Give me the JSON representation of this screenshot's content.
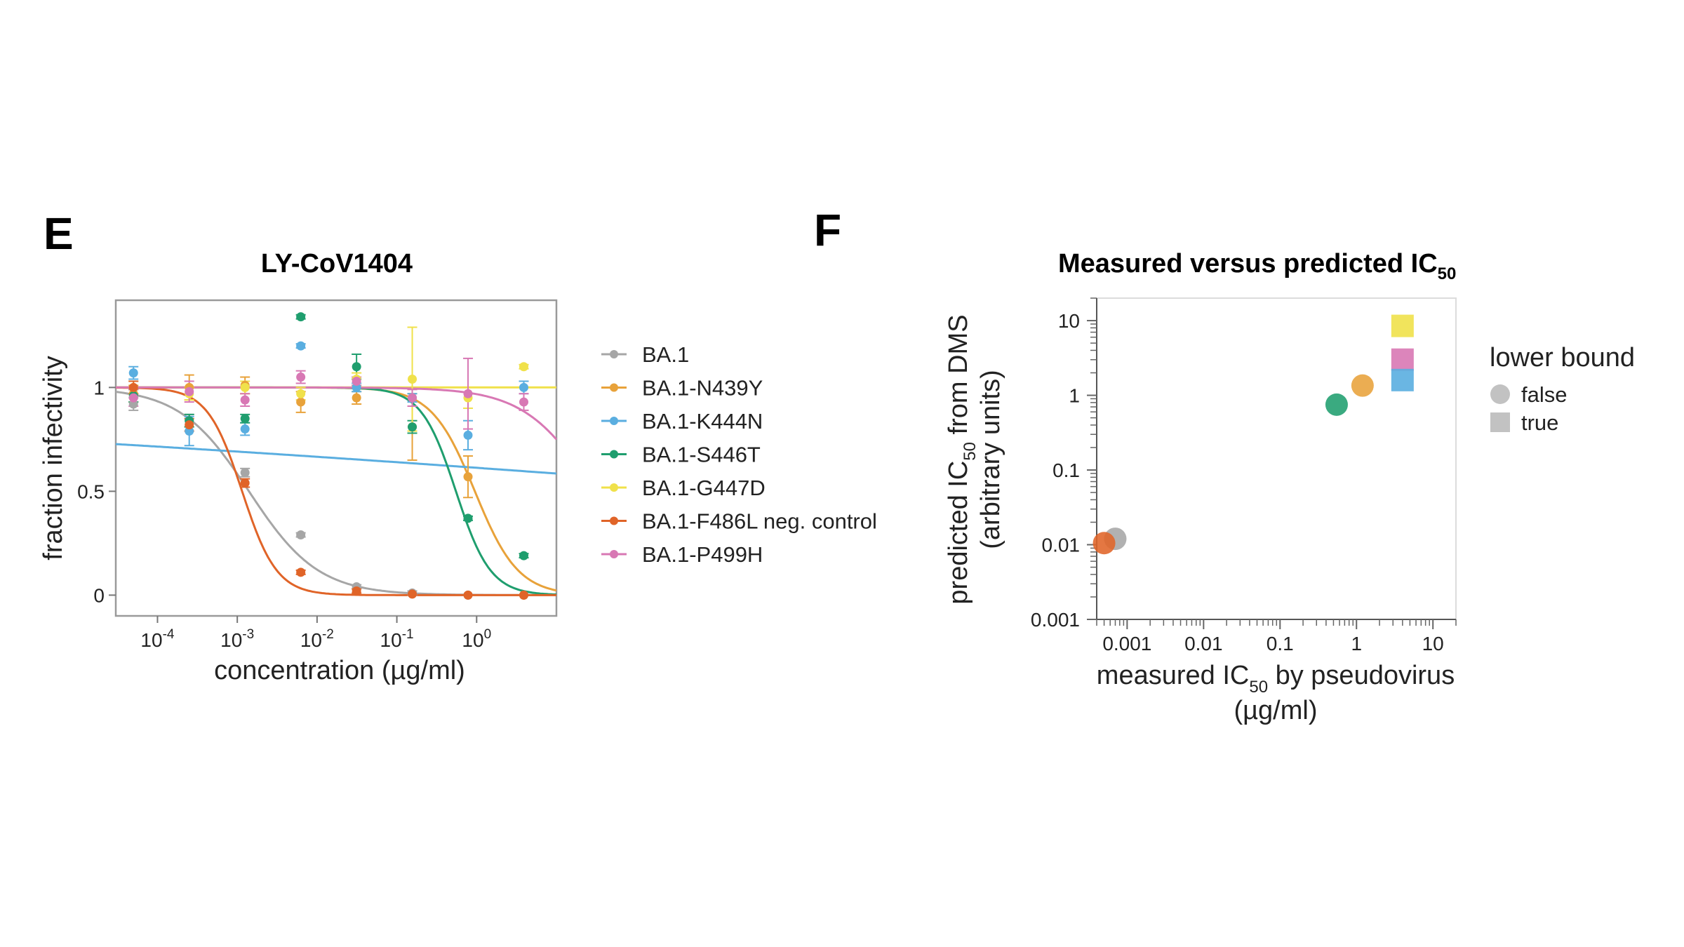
{
  "panels": {
    "e_letter": "E",
    "f_letter": "F"
  },
  "chart_data": [
    {
      "type": "line",
      "title": "LY-CoV1404",
      "xlabel": "concentration (µg/ml)",
      "ylabel": "fraction infectivity",
      "xscale": "log",
      "xlim": [
        3e-05,
        10
      ],
      "ylim": [
        -0.1,
        1.42
      ],
      "xticks": [
        {
          "value": 0.0001,
          "base": "10",
          "exp": "-4"
        },
        {
          "value": 0.001,
          "base": "10",
          "exp": "-3"
        },
        {
          "value": 0.01,
          "base": "10",
          "exp": "-2"
        },
        {
          "value": 0.1,
          "base": "10",
          "exp": "-1"
        },
        {
          "value": 1,
          "base": "10",
          "exp": "0"
        }
      ],
      "yticks": [
        {
          "value": 0,
          "label": "0"
        },
        {
          "value": 0.5,
          "label": "0.5"
        },
        {
          "value": 1,
          "label": "1"
        }
      ],
      "x_points": [
        5e-05,
        0.00025,
        0.00125,
        0.00625,
        0.03125,
        0.156,
        0.78,
        3.9
      ],
      "series": [
        {
          "name": "BA.1",
          "color": "#a6a6a6",
          "ic50": 0.0014,
          "hill": 1.0,
          "values": [
            0.92,
            0.84,
            0.59,
            0.29,
            0.04,
            0.01,
            0.0,
            0.0
          ],
          "errors": [
            0.03,
            0.03,
            0.02,
            0.01,
            0.01,
            0.01,
            0.0,
            0.0
          ]
        },
        {
          "name": "BA.1-N439Y",
          "color": "#e8a23a",
          "ic50": 0.95,
          "hill": 1.6,
          "values": [
            0.97,
            1.0,
            1.01,
            0.93,
            0.95,
            0.81,
            0.57,
            0.0
          ],
          "errors": [
            0.04,
            0.06,
            0.04,
            0.05,
            0.03,
            0.16,
            0.1,
            0.0
          ]
        },
        {
          "name": "BA.1-K444N",
          "color": "#5aaee0",
          "ic50": 10000,
          "hill": 0.05,
          "values": [
            1.07,
            0.79,
            0.8,
            1.2,
            1.0,
            0.95,
            0.77,
            1.0
          ],
          "errors": [
            0.03,
            0.07,
            0.03,
            0.01,
            0.02,
            0.02,
            0.07,
            0.03
          ]
        },
        {
          "name": "BA.1-S446T",
          "color": "#1f9e6e",
          "ic50": 0.55,
          "hill": 2.0,
          "values": [
            0.96,
            0.84,
            0.85,
            1.34,
            1.1,
            0.81,
            0.37,
            0.19
          ],
          "errors": [
            0.03,
            0.03,
            0.02,
            0.01,
            0.06,
            0.03,
            0.01,
            0.01
          ]
        },
        {
          "name": "BA.1-G447D",
          "color": "#f0e14a",
          "ic50": 1000000000000.0,
          "hill": 1.0,
          "values": [
            1.0,
            0.97,
            1.0,
            0.97,
            1.04,
            1.04,
            0.95,
            1.1
          ],
          "errors": [
            0.03,
            0.03,
            0.03,
            0.03,
            0.03,
            0.25,
            0.05,
            0.01
          ]
        },
        {
          "name": "BA.1-F486L neg. control",
          "color": "#e06428",
          "ic50": 0.00115,
          "hill": 2.0,
          "values": [
            1.0,
            0.82,
            0.54,
            0.11,
            0.02,
            0.005,
            0.0,
            0.0
          ],
          "errors": [
            0.03,
            0.03,
            0.02,
            0.01,
            0.01,
            0.0,
            0.0,
            0.0
          ]
        },
        {
          "name": "BA.1-P499H",
          "color": "#d878b4",
          "ic50": 30,
          "hill": 1.0,
          "values": [
            0.95,
            0.98,
            0.94,
            1.05,
            1.03,
            0.95,
            0.97,
            0.93
          ],
          "errors": [
            0.04,
            0.05,
            0.03,
            0.03,
            0.02,
            0.04,
            0.17,
            0.04
          ]
        }
      ]
    },
    {
      "type": "scatter",
      "title_main": "Measured versus predicted IC",
      "title_sub": "50",
      "xlabel_parts": [
        "measured IC",
        "50",
        " by pseudovirus"
      ],
      "xlabel_line2": "(µg/ml)",
      "ylabel_parts": [
        "predicted IC",
        "50",
        " from DMS"
      ],
      "ylabel_line2": "(arbitrary units)",
      "xscale": "log",
      "yscale": "log",
      "xlim": [
        0.0004,
        20
      ],
      "ylim": [
        0.001,
        20
      ],
      "xticks": [
        {
          "value": 0.001,
          "label": "0.001"
        },
        {
          "value": 0.01,
          "label": "0.01"
        },
        {
          "value": 0.1,
          "label": "0.1"
        },
        {
          "value": 1,
          "label": "1"
        },
        {
          "value": 10,
          "label": "10"
        }
      ],
      "yticks": [
        {
          "value": 0.001,
          "label": "0.001"
        },
        {
          "value": 0.01,
          "label": "0.01"
        },
        {
          "value": 0.1,
          "label": "0.1"
        },
        {
          "value": 1,
          "label": "1"
        },
        {
          "value": 10,
          "label": "10"
        }
      ],
      "legend_title": "lower bound",
      "legend_entries": [
        {
          "label": "false",
          "shape": "circle"
        },
        {
          "label": "true",
          "shape": "square"
        }
      ],
      "points": [
        {
          "name": "BA.1",
          "x": 0.0007,
          "y": 0.012,
          "lower_bound": false,
          "color": "#a6a6a6"
        },
        {
          "name": "BA.1-F486L neg. control",
          "x": 0.0005,
          "y": 0.0105,
          "lower_bound": false,
          "color": "#e06428"
        },
        {
          "name": "BA.1-S446T",
          "x": 0.55,
          "y": 0.75,
          "lower_bound": false,
          "color": "#1f9e6e"
        },
        {
          "name": "BA.1-N439Y",
          "x": 1.2,
          "y": 1.35,
          "lower_bound": false,
          "color": "#e8a23a"
        },
        {
          "name": "BA.1-G447D",
          "x": 4.0,
          "y": 8.5,
          "lower_bound": true,
          "color": "#f0e14a"
        },
        {
          "name": "BA.1-P499H",
          "x": 4.0,
          "y": 3.0,
          "lower_bound": true,
          "color": "#d878b4"
        },
        {
          "name": "BA.1-K444N",
          "x": 4.0,
          "y": 1.6,
          "lower_bound": true,
          "color": "#5aaee0"
        }
      ]
    }
  ]
}
